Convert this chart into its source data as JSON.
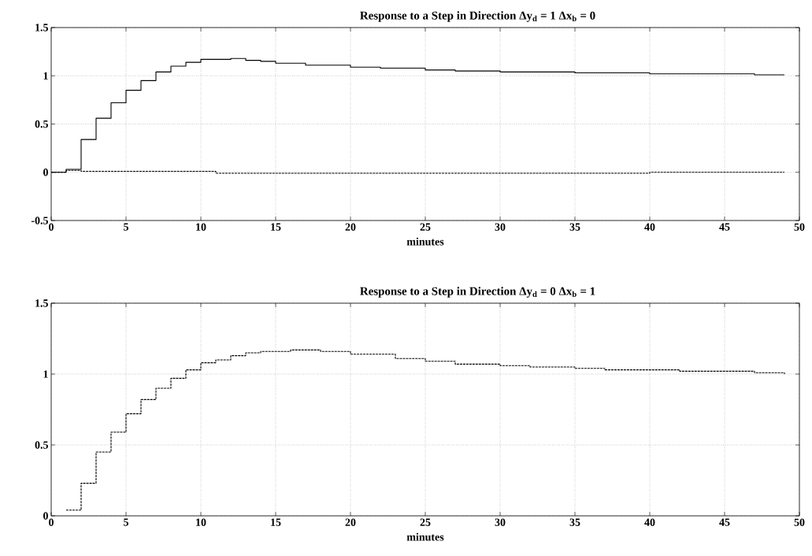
{
  "chart_data": [
    {
      "type": "step",
      "title": "Response to a Step in Direction Δy$_{d}$ = 1  Δx$_{b}$ = 0",
      "xlabel": "minutes",
      "xlim": [
        0,
        50
      ],
      "xticks": [
        0,
        5,
        10,
        15,
        20,
        25,
        30,
        35,
        40,
        45,
        50
      ],
      "ylim": [
        -0.5,
        1.5
      ],
      "yticks": [
        -0.5,
        0,
        0.5,
        1,
        1.5
      ],
      "grid": true,
      "series": [
        {
          "color": "#000000",
          "line_style": "solid",
          "x": [
            0,
            1,
            2,
            3,
            4,
            5,
            6,
            7,
            8,
            9,
            10,
            11,
            12,
            13,
            14,
            15,
            17,
            20,
            22,
            25,
            27,
            30,
            32,
            35,
            37,
            40,
            42,
            45,
            47,
            49
          ],
          "values": [
            0,
            0.03,
            0.34,
            0.56,
            0.72,
            0.85,
            0.95,
            1.04,
            1.1,
            1.14,
            1.17,
            1.17,
            1.18,
            1.16,
            1.15,
            1.13,
            1.11,
            1.09,
            1.08,
            1.06,
            1.05,
            1.04,
            1.04,
            1.03,
            1.03,
            1.02,
            1.02,
            1.02,
            1.01,
            1.01
          ]
        },
        {
          "color": "#000000",
          "line_style": "dashed",
          "x": [
            0,
            1,
            2,
            5,
            10,
            11,
            20,
            30,
            40,
            49
          ],
          "values": [
            0,
            0.02,
            0.01,
            0.01,
            0.01,
            -0.01,
            -0.01,
            -0.01,
            0,
            0
          ]
        }
      ]
    },
    {
      "type": "step",
      "title": "Response to a Step in Direction Δy$_{d}$ = 0  Δx$_{b}$ = 1",
      "xlabel": "minutes",
      "xlim": [
        0,
        50
      ],
      "xticks": [
        0,
        5,
        10,
        15,
        20,
        25,
        30,
        35,
        40,
        45,
        50
      ],
      "ylim": [
        0,
        1.5
      ],
      "yticks": [
        0,
        0.5,
        1,
        1.5
      ],
      "grid": true,
      "series": [
        {
          "color": "#000000",
          "line_style": "dashed",
          "x": [
            1,
            2,
            3,
            4,
            5,
            6,
            7,
            8,
            9,
            10,
            11,
            12,
            13,
            14,
            15,
            16,
            18,
            20,
            23,
            25,
            27,
            30,
            32,
            35,
            37,
            40,
            42,
            45,
            47,
            49
          ],
          "values": [
            0.04,
            0.23,
            0.45,
            0.59,
            0.72,
            0.82,
            0.9,
            0.97,
            1.03,
            1.08,
            1.1,
            1.13,
            1.15,
            1.16,
            1.16,
            1.17,
            1.16,
            1.14,
            1.11,
            1.09,
            1.07,
            1.06,
            1.05,
            1.04,
            1.03,
            1.03,
            1.02,
            1.02,
            1.01,
            1.0
          ]
        }
      ]
    }
  ]
}
